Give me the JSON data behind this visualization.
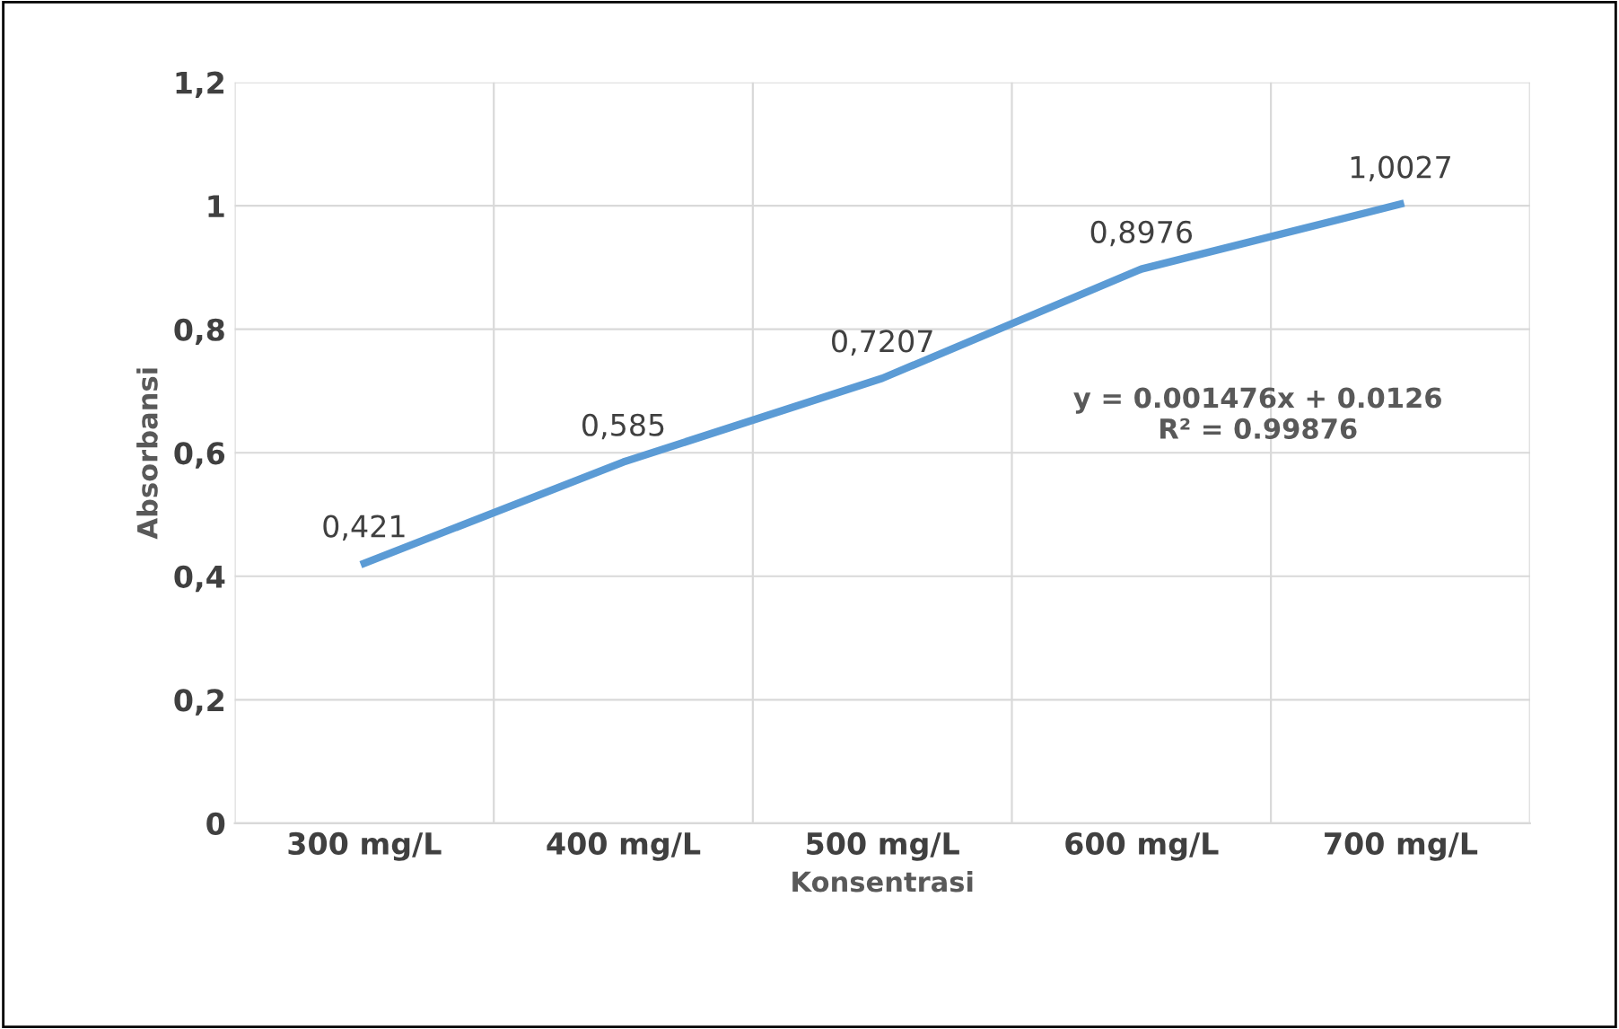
{
  "chart_data": {
    "type": "line",
    "xlabel": "Konsentrasi",
    "ylabel": "Absorbansi",
    "categories": [
      "300 mg/L",
      "400 mg/L",
      "500 mg/L",
      "600 mg/L",
      "700 mg/L"
    ],
    "series": [
      {
        "color": "#5b9bd5",
        "values": [
          0.421,
          0.585,
          0.7207,
          0.8976,
          1.0027
        ],
        "value_labels": [
          "0,421",
          "0,585",
          "0,7207",
          "0,8976",
          "1,0027"
        ]
      }
    ],
    "ylim": [
      0,
      1.2
    ],
    "yticks": [
      0,
      {
        "value": 0.2,
        "label": "0,2"
      },
      {
        "value": 0.4,
        "label": "0,4"
      },
      {
        "value": 0.6,
        "label": "0,6"
      },
      {
        "value": 0.8,
        "label": "0,8"
      },
      1,
      {
        "value": 1.2,
        "label": "1,2"
      }
    ],
    "annotations": [
      "y = 0.001476x + 0.0126\nR² = 0.99876"
    ],
    "grid": true,
    "marker": "none",
    "line_style": "solid",
    "legend": false
  }
}
